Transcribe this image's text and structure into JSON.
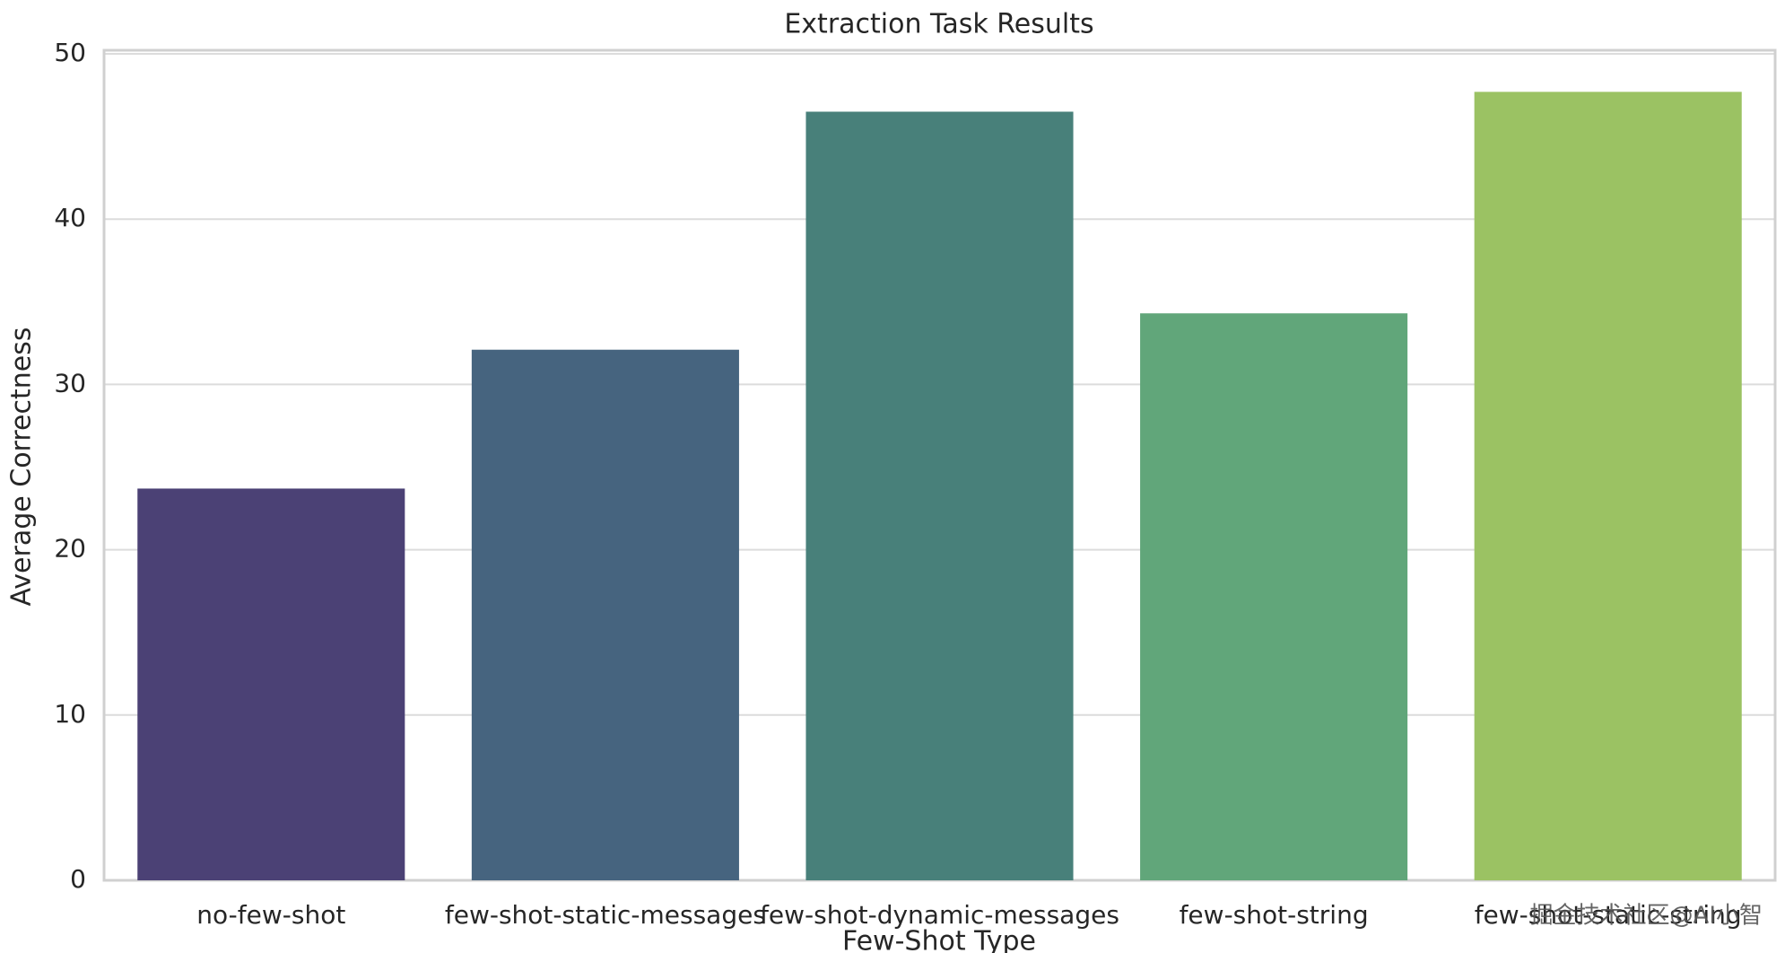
{
  "chart_data": {
    "type": "bar",
    "title": "Extraction Task Results",
    "x_label": "Few-Shot Type",
    "y_label": "Average Correctness",
    "categories": [
      "no-few-shot",
      "few-shot-static-messages",
      "few-shot-dynamic-messages",
      "few-shot-string",
      "few-shot-static-string"
    ],
    "values": [
      23.7,
      32.1,
      46.5,
      34.3,
      47.7
    ],
    "colors": [
      "#4b4175",
      "#46647f",
      "#48807a",
      "#61a67a",
      "#9bc263"
    ],
    "ylim": [
      0,
      50
    ],
    "yticks": [
      0,
      10,
      20,
      30,
      40,
      50
    ],
    "grid": true
  },
  "watermark": "掘金技术社区@AI小智"
}
